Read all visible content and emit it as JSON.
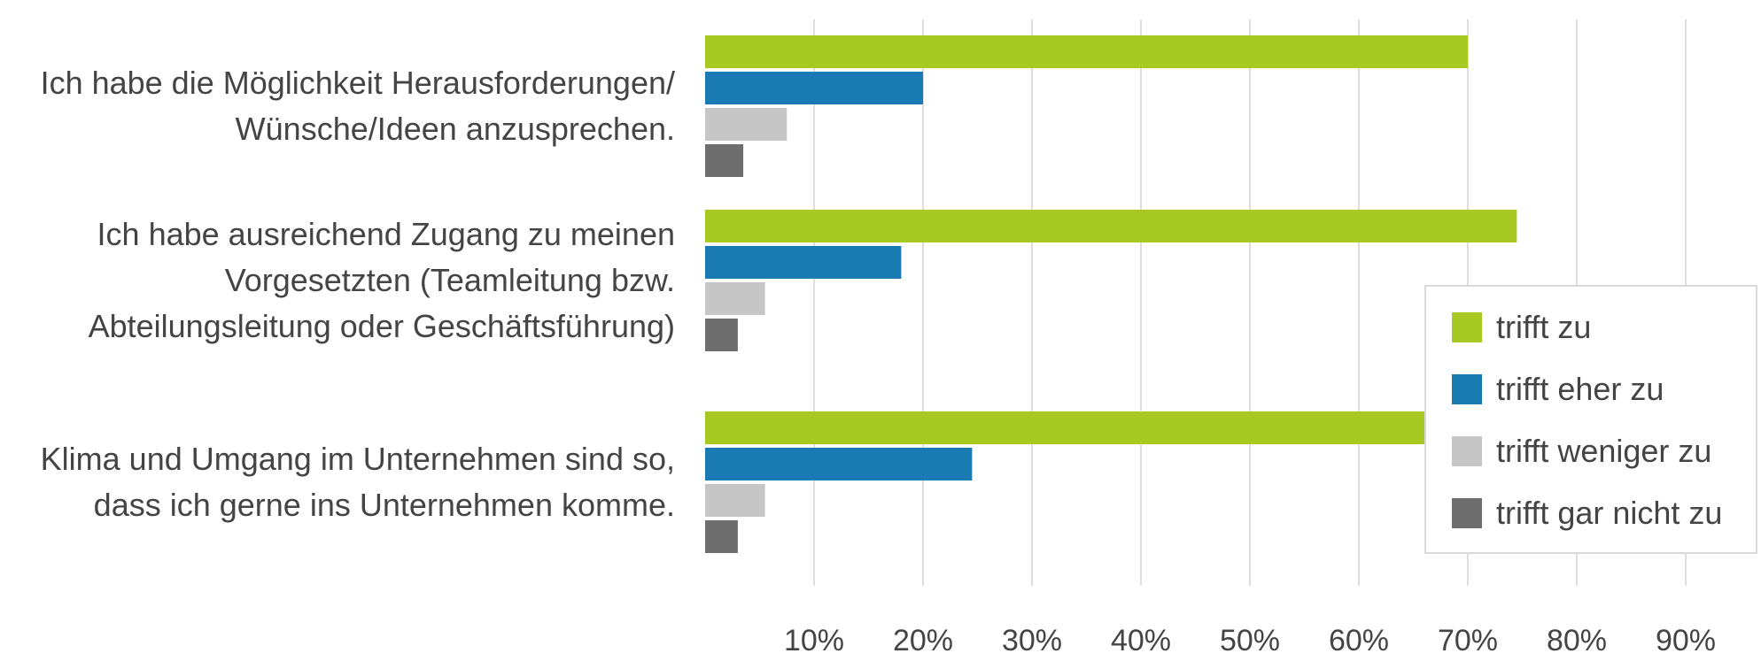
{
  "chart_data": {
    "type": "bar",
    "orientation": "horizontal",
    "categories": [
      [
        "Ich habe die Möglichkeit Herausforderungen/",
        "Wünsche/Ideen anzusprechen."
      ],
      [
        "Ich habe ausreichend Zugang zu meinen",
        "Vorgesetzten (Teamleitung bzw.",
        "Abteilungsleitung oder Geschäftsführung)"
      ],
      [
        "Klima und Umgang im Unternehmen sind so,",
        "dass ich gerne ins Unternehmen komme."
      ]
    ],
    "series": [
      {
        "name": "trifft zu",
        "color": "#a8c922",
        "values": [
          70,
          74.5,
          67
        ]
      },
      {
        "name": "trifft eher zu",
        "color": "#1a7ab2",
        "values": [
          20,
          18,
          24.5
        ]
      },
      {
        "name": "trifft weniger zu",
        "color": "#c6c6c6",
        "values": [
          7.5,
          5.5,
          5.5
        ]
      },
      {
        "name": "trifft gar nicht zu",
        "color": "#6e6e6e",
        "values": [
          3.5,
          3,
          3
        ]
      }
    ],
    "xlim": [
      0,
      95
    ],
    "xticks": [
      10,
      20,
      30,
      40,
      50,
      60,
      70,
      80,
      90
    ],
    "xtick_labels": [
      "10%",
      "20%",
      "30%",
      "40%",
      "50%",
      "60%",
      "70%",
      "80%",
      "90%"
    ],
    "grid": true,
    "legend_position": "right",
    "title": "",
    "xlabel": "",
    "ylabel": ""
  }
}
